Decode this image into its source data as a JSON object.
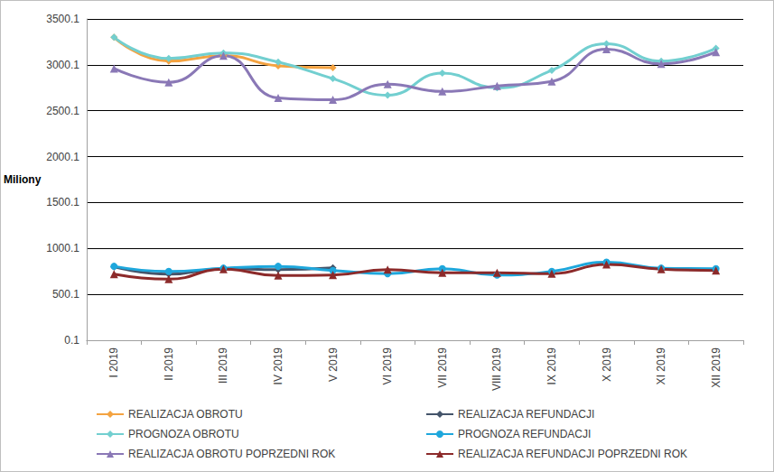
{
  "chart_data": {
    "type": "line",
    "y_label": "Miliony",
    "categories": [
      "I 2019",
      "II 2019",
      "III 2019",
      "IV 2019",
      "V 2019",
      "VI 2019",
      "VII 2019",
      "VIII 2019",
      "IX 2019",
      "X 2019",
      "XI 2019",
      "XII 2019"
    ],
    "ylim": [
      0.1,
      3500.1
    ],
    "yticks": [
      0.1,
      500.1,
      1000.1,
      1500.1,
      2000.1,
      2500.1,
      3000.1,
      3500.1
    ],
    "grid": true,
    "legend": "bottom",
    "series": [
      {
        "name": "REALIZACJA OBROTU",
        "color": "#f4a341",
        "marker": "diamond",
        "line_style": "solid",
        "values": [
          3300,
          3040,
          3100,
          2990,
          2970,
          null,
          null,
          null,
          null,
          null,
          null,
          null
        ]
      },
      {
        "name": "REALIZACJA REFUNDACJI",
        "color": "#44546a",
        "marker": "diamond",
        "line_style": "solid",
        "values": [
          800,
          720,
          780,
          770,
          790,
          null,
          null,
          null,
          null,
          null,
          null,
          null
        ]
      },
      {
        "name": "PROGNOZA OBROTU",
        "color": "#72cfd0",
        "marker": "diamond",
        "line_style": "solid",
        "values": [
          3300,
          3070,
          3130,
          3030,
          2850,
          2670,
          2910,
          2750,
          2940,
          3230,
          3040,
          3180
        ]
      },
      {
        "name": "PROGNOZA REFUNDACJI",
        "color": "#1ea7dc",
        "marker": "circle",
        "line_style": "solid",
        "values": [
          805,
          750,
          785,
          805,
          760,
          725,
          780,
          710,
          750,
          850,
          785,
          780
        ]
      },
      {
        "name": "REALIZACJA OBROTU POPRZEDNI ROK",
        "color": "#8a78b6",
        "marker": "triangle",
        "line_style": "solid",
        "values": [
          2960,
          2810,
          3100,
          2640,
          2620,
          2790,
          2710,
          2770,
          2820,
          3170,
          3010,
          3140
        ]
      },
      {
        "name": "REALIZACJA REFUNDACJI POPRZEDNI ROK",
        "color": "#8c2a2a",
        "marker": "triangle",
        "line_style": "solid",
        "values": [
          720,
          665,
          775,
          705,
          710,
          770,
          735,
          735,
          725,
          825,
          775,
          760
        ]
      }
    ]
  }
}
